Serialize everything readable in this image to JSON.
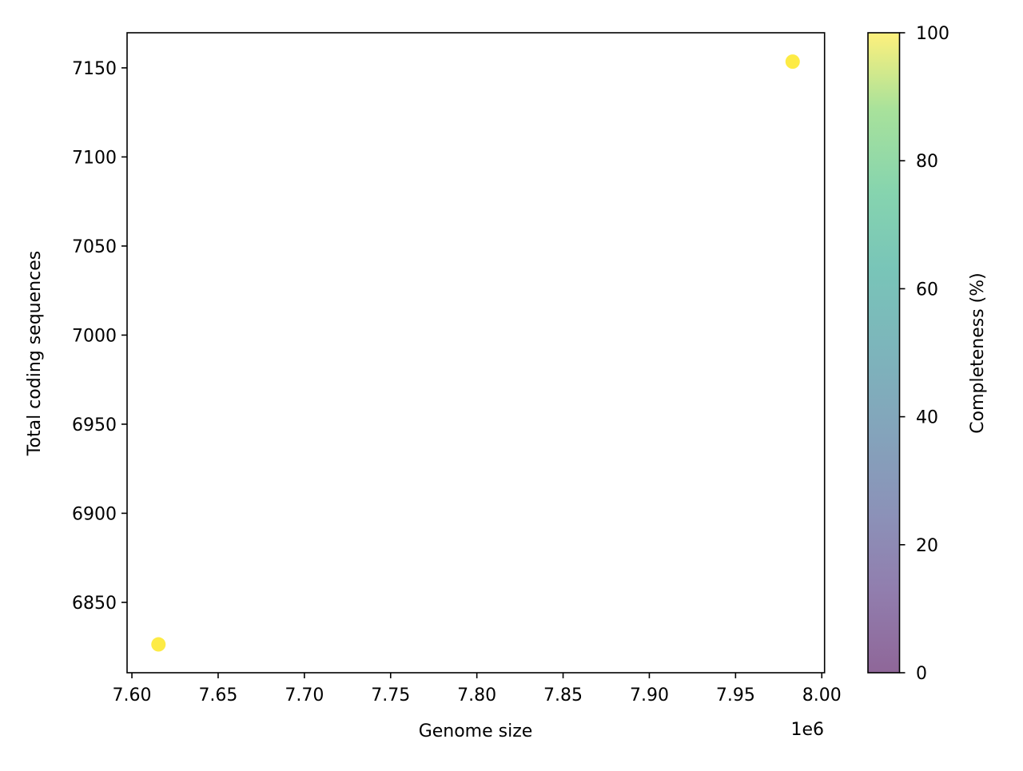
{
  "chart_data": {
    "type": "scatter",
    "title": "",
    "xlabel": "Genome size",
    "ylabel": "Total coding sequences",
    "x_offset_label": "1e6",
    "xlim": [
      7597200,
      8001600
    ],
    "ylim": [
      6810.5,
      7169.7
    ],
    "xticks": [
      7600000,
      7650000,
      7700000,
      7750000,
      7800000,
      7850000,
      7900000,
      7950000,
      8000000
    ],
    "xtick_labels": [
      "7.60",
      "7.65",
      "7.70",
      "7.75",
      "7.80",
      "7.85",
      "7.90",
      "7.95",
      "8.00"
    ],
    "yticks": [
      6850,
      6900,
      6950,
      7000,
      7050,
      7100,
      7150
    ],
    "ytick_labels": [
      "6850",
      "6900",
      "6950",
      "7000",
      "7050",
      "7100",
      "7150"
    ],
    "grid": false,
    "points": [
      {
        "x": 7615400,
        "y": 6826.4,
        "completeness": 100
      },
      {
        "x": 7983100,
        "y": 7153.5,
        "completeness": 100
      }
    ],
    "colorbar": {
      "label": "Completeness (%)",
      "colormap": "viridis",
      "range": [
        0,
        100
      ],
      "ticks": [
        0,
        20,
        40,
        60,
        80,
        100
      ],
      "tick_labels": [
        "0",
        "20",
        "40",
        "60",
        "80",
        "100"
      ],
      "alpha": 0.6
    }
  }
}
